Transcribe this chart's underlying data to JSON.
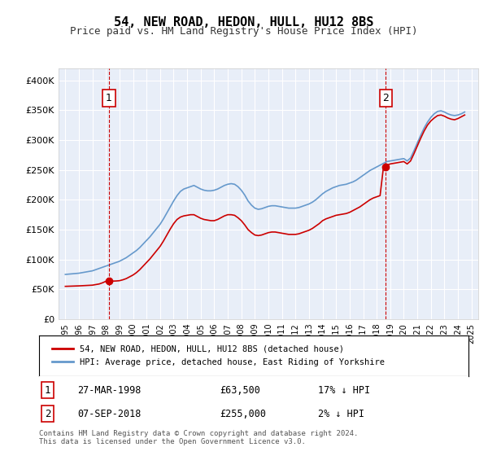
{
  "title": "54, NEW ROAD, HEDON, HULL, HU12 8BS",
  "subtitle": "Price paid vs. HM Land Registry's House Price Index (HPI)",
  "ylabel": "",
  "background_color": "#e8eef8",
  "plot_bg_color": "#e8eef8",
  "outer_bg_color": "#ffffff",
  "red_line_color": "#cc0000",
  "blue_line_color": "#6699cc",
  "marker1_x": 1998.23,
  "marker1_y": 63500,
  "marker1_label": "1",
  "marker1_date": "27-MAR-1998",
  "marker1_price": "£63,500",
  "marker1_hpi": "17% ↓ HPI",
  "marker2_x": 2018.68,
  "marker2_y": 255000,
  "marker2_label": "2",
  "marker2_date": "07-SEP-2018",
  "marker2_price": "£255,000",
  "marker2_hpi": "2% ↓ HPI",
  "ylim": [
    0,
    420000
  ],
  "xlim": [
    1994.5,
    2025.5
  ],
  "yticks": [
    0,
    50000,
    100000,
    150000,
    200000,
    250000,
    300000,
    350000,
    400000
  ],
  "ytick_labels": [
    "£0",
    "£50K",
    "£100K",
    "£150K",
    "£200K",
    "£250K",
    "£300K",
    "£350K",
    "£400K"
  ],
  "xticks": [
    1995,
    1996,
    1997,
    1998,
    1999,
    2000,
    2001,
    2002,
    2003,
    2004,
    2005,
    2006,
    2007,
    2008,
    2009,
    2010,
    2011,
    2012,
    2013,
    2014,
    2015,
    2016,
    2017,
    2018,
    2019,
    2020,
    2021,
    2022,
    2023,
    2024,
    2025
  ],
  "legend_line1": "54, NEW ROAD, HEDON, HULL, HU12 8BS (detached house)",
  "legend_line2": "HPI: Average price, detached house, East Riding of Yorkshire",
  "footer": "Contains HM Land Registry data © Crown copyright and database right 2024.\nThis data is licensed under the Open Government Licence v3.0.",
  "hpi_data_x": [
    1995,
    1995.25,
    1995.5,
    1995.75,
    1996,
    1996.25,
    1996.5,
    1996.75,
    1997,
    1997.25,
    1997.5,
    1997.75,
    1998,
    1998.25,
    1998.5,
    1998.75,
    1999,
    1999.25,
    1999.5,
    1999.75,
    2000,
    2000.25,
    2000.5,
    2000.75,
    2001,
    2001.25,
    2001.5,
    2001.75,
    2002,
    2002.25,
    2002.5,
    2002.75,
    2003,
    2003.25,
    2003.5,
    2003.75,
    2004,
    2004.25,
    2004.5,
    2004.75,
    2005,
    2005.25,
    2005.5,
    2005.75,
    2006,
    2006.25,
    2006.5,
    2006.75,
    2007,
    2007.25,
    2007.5,
    2007.75,
    2008,
    2008.25,
    2008.5,
    2008.75,
    2009,
    2009.25,
    2009.5,
    2009.75,
    2010,
    2010.25,
    2010.5,
    2010.75,
    2011,
    2011.25,
    2011.5,
    2011.75,
    2012,
    2012.25,
    2012.5,
    2012.75,
    2013,
    2013.25,
    2013.5,
    2013.75,
    2014,
    2014.25,
    2014.5,
    2014.75,
    2015,
    2015.25,
    2015.5,
    2015.75,
    2016,
    2016.25,
    2016.5,
    2016.75,
    2017,
    2017.25,
    2017.5,
    2017.75,
    2018,
    2018.25,
    2018.5,
    2018.75,
    2019,
    2019.25,
    2019.5,
    2019.75,
    2020,
    2020.25,
    2020.5,
    2020.75,
    2021,
    2021.25,
    2021.5,
    2021.75,
    2022,
    2022.25,
    2022.5,
    2022.75,
    2023,
    2023.25,
    2023.5,
    2023.75,
    2024,
    2024.25,
    2024.5
  ],
  "hpi_data_y": [
    75000,
    75500,
    76000,
    76500,
    77000,
    78000,
    79000,
    80000,
    81000,
    83000,
    85000,
    87000,
    89000,
    91000,
    93000,
    95000,
    97000,
    100000,
    103000,
    107000,
    111000,
    115000,
    120000,
    126000,
    132000,
    138000,
    145000,
    152000,
    159000,
    168000,
    178000,
    188000,
    198000,
    207000,
    214000,
    218000,
    220000,
    222000,
    224000,
    221000,
    218000,
    216000,
    215000,
    215000,
    216000,
    218000,
    221000,
    224000,
    226000,
    227000,
    226000,
    222000,
    216000,
    208000,
    198000,
    191000,
    186000,
    184000,
    185000,
    187000,
    189000,
    190000,
    190000,
    189000,
    188000,
    187000,
    186000,
    186000,
    186000,
    187000,
    189000,
    191000,
    193000,
    196000,
    200000,
    205000,
    210000,
    214000,
    217000,
    220000,
    222000,
    224000,
    225000,
    226000,
    228000,
    230000,
    233000,
    237000,
    241000,
    245000,
    249000,
    252000,
    255000,
    258000,
    261000,
    264000,
    265000,
    266000,
    267000,
    268000,
    269000,
    265000,
    270000,
    282000,
    295000,
    308000,
    320000,
    330000,
    338000,
    344000,
    348000,
    349000,
    347000,
    344000,
    342000,
    341000,
    342000,
    344000,
    347000
  ],
  "red_data_x": [
    1995,
    1995.25,
    1995.5,
    1995.75,
    1996,
    1996.25,
    1996.5,
    1996.75,
    1997,
    1997.25,
    1997.5,
    1997.75,
    1998,
    1998.25,
    1998.5,
    1998.75,
    1999,
    1999.25,
    1999.5,
    1999.75,
    2000,
    2000.25,
    2000.5,
    2000.75,
    2001,
    2001.25,
    2001.5,
    2001.75,
    2002,
    2002.25,
    2002.5,
    2002.75,
    2003,
    2003.25,
    2003.5,
    2003.75,
    2004,
    2004.25,
    2004.5,
    2004.75,
    2005,
    2005.25,
    2005.5,
    2005.75,
    2006,
    2006.25,
    2006.5,
    2006.75,
    2007,
    2007.25,
    2007.5,
    2007.75,
    2008,
    2008.25,
    2008.5,
    2008.75,
    2009,
    2009.25,
    2009.5,
    2009.75,
    2010,
    2010.25,
    2010.5,
    2010.75,
    2011,
    2011.25,
    2011.5,
    2011.75,
    2012,
    2012.25,
    2012.5,
    2012.75,
    2013,
    2013.25,
    2013.5,
    2013.75,
    2014,
    2014.25,
    2014.5,
    2014.75,
    2015,
    2015.25,
    2015.5,
    2015.75,
    2016,
    2016.25,
    2016.5,
    2016.75,
    2017,
    2017.25,
    2017.5,
    2017.75,
    2018,
    2018.25,
    2018.5,
    2018.75,
    2019,
    2019.25,
    2019.5,
    2019.75,
    2020,
    2020.25,
    2020.5,
    2020.75,
    2021,
    2021.25,
    2021.5,
    2021.75,
    2022,
    2022.25,
    2022.5,
    2022.75,
    2023,
    2023.25,
    2023.5,
    2023.75,
    2024,
    2024.25,
    2024.5
  ],
  "red_data_y": [
    55000,
    55200,
    55400,
    55600,
    55800,
    56100,
    56400,
    56700,
    57000,
    58000,
    59000,
    61000,
    63500,
    63500,
    63800,
    64000,
    64500,
    66000,
    68000,
    71000,
    74000,
    78000,
    83000,
    89000,
    95000,
    101000,
    108000,
    115000,
    122000,
    131000,
    141000,
    151000,
    160000,
    167000,
    171000,
    173000,
    174000,
    175000,
    175000,
    172000,
    169000,
    167000,
    166000,
    165000,
    165000,
    167000,
    170000,
    173000,
    175000,
    175000,
    174000,
    170000,
    165000,
    158000,
    150000,
    145000,
    141000,
    140000,
    141000,
    143000,
    145000,
    146000,
    146000,
    145000,
    144000,
    143000,
    142000,
    142000,
    142000,
    143000,
    145000,
    147000,
    149000,
    152000,
    156000,
    160000,
    165000,
    168000,
    170000,
    172000,
    174000,
    175000,
    176000,
    177000,
    179000,
    182000,
    185000,
    188000,
    192000,
    196000,
    200000,
    203000,
    205000,
    207000,
    255000,
    258000,
    260000,
    261000,
    262000,
    263000,
    264000,
    260000,
    265000,
    277000,
    290000,
    303000,
    315000,
    325000,
    332000,
    337000,
    341000,
    342000,
    340000,
    337000,
    335000,
    334000,
    336000,
    339000,
    342000
  ]
}
